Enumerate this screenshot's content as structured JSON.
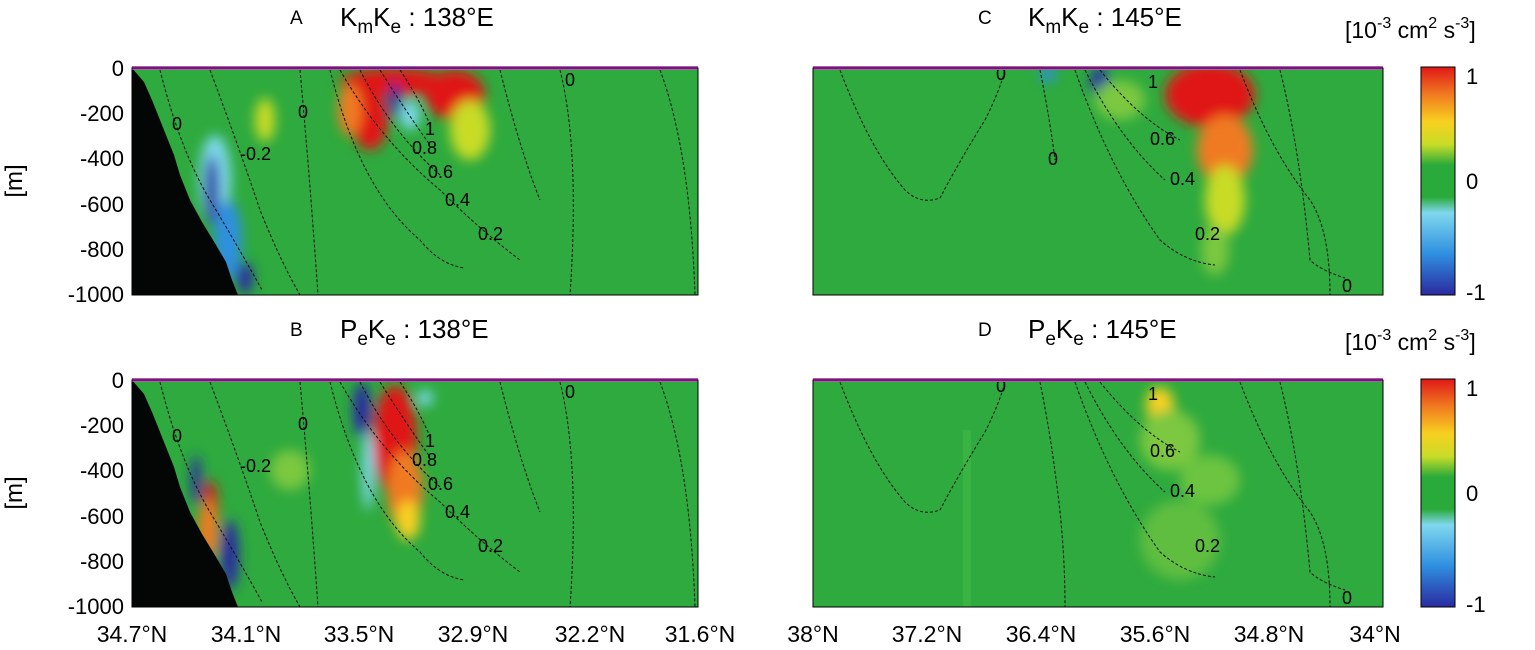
{
  "chart_data": [
    {
      "panel": "A",
      "type": "heatmap",
      "title_main": "K",
      "title_sub1": "m",
      "title_mid": "K",
      "title_sub2": "e",
      "title_tail": " : 138°E",
      "ylabel": "[m]",
      "yticks": [
        "0",
        "-200",
        "-400",
        "-600",
        "-800",
        "-1000"
      ],
      "xticks": [],
      "contour_labels": [
        "0",
        "-0.2",
        "0",
        "1",
        "0.8",
        "0.6",
        "0.4",
        "0.2",
        "0"
      ],
      "features": "red positive near surface 33.5°N–32.9°N; blue negative band along shelf slope near 34.4°N; bathymetry black at left"
    },
    {
      "panel": "B",
      "type": "heatmap",
      "title_main": "P",
      "title_sub1": "e",
      "title_mid": "K",
      "title_sub2": "e",
      "title_tail": " : 138°E",
      "ylabel": "[m]",
      "yticks": [
        "0",
        "-200",
        "-400",
        "-600",
        "-800",
        "-1000"
      ],
      "xticks": [
        "34.7°N",
        "34.1°N",
        "33.5°N",
        "32.9°N",
        "32.2°N",
        "31.6°N"
      ],
      "contour_labels": [
        "0",
        "-0.2",
        "0",
        "1",
        "0.8",
        "0.6",
        "0.4",
        "0.2",
        "0"
      ],
      "features": "red positive column near 33.3°N down to 600 m; blue column near 33.5°N; red/blue cells at shelf slope"
    },
    {
      "panel": "C",
      "type": "heatmap",
      "title_main": "K",
      "title_sub1": "m",
      "title_mid": "K",
      "title_sub2": "e",
      "title_tail": " : 145°E",
      "xticks": [],
      "contour_labels": [
        "0",
        "1",
        "0.6",
        "0",
        "0.4",
        "0.2",
        "0"
      ],
      "features": "red positive at 35.6°N–34.9°N near surface; small blue cells near 36.4°N and 36.0°N"
    },
    {
      "panel": "D",
      "type": "heatmap",
      "title_main": "P",
      "title_sub1": "e",
      "title_mid": "K",
      "title_sub2": "e",
      "title_tail": " : 145°E",
      "xticks": [
        "38°N",
        "37.2°N",
        "36.4°N",
        "35.6°N",
        "34.8°N",
        "34°N"
      ],
      "contour_labels": [
        "0",
        "1",
        "0.6",
        "0.4",
        "0.2",
        "0"
      ],
      "features": "yellow positive patch near 35.6°N at 150 m; weak positive green-yellow below"
    }
  ],
  "colorbar": {
    "unit_pre": "[10",
    "unit_exp1": "-3",
    "unit_mid": " cm",
    "unit_exp2": "2",
    "unit_s": " s",
    "unit_exp3": "-3",
    "unit_post": "]",
    "ticks": [
      "1",
      "0",
      "-1"
    ],
    "colors": [
      "#2a2aa0",
      "#2f8fe0",
      "#7fd8ee",
      "#2aaa3a",
      "#c8dc28",
      "#f8d020",
      "#f07a20",
      "#e01818"
    ]
  },
  "colors": {
    "field_background": "#2eaa3e",
    "land": "#040606",
    "surface_line": "#c050c0"
  }
}
